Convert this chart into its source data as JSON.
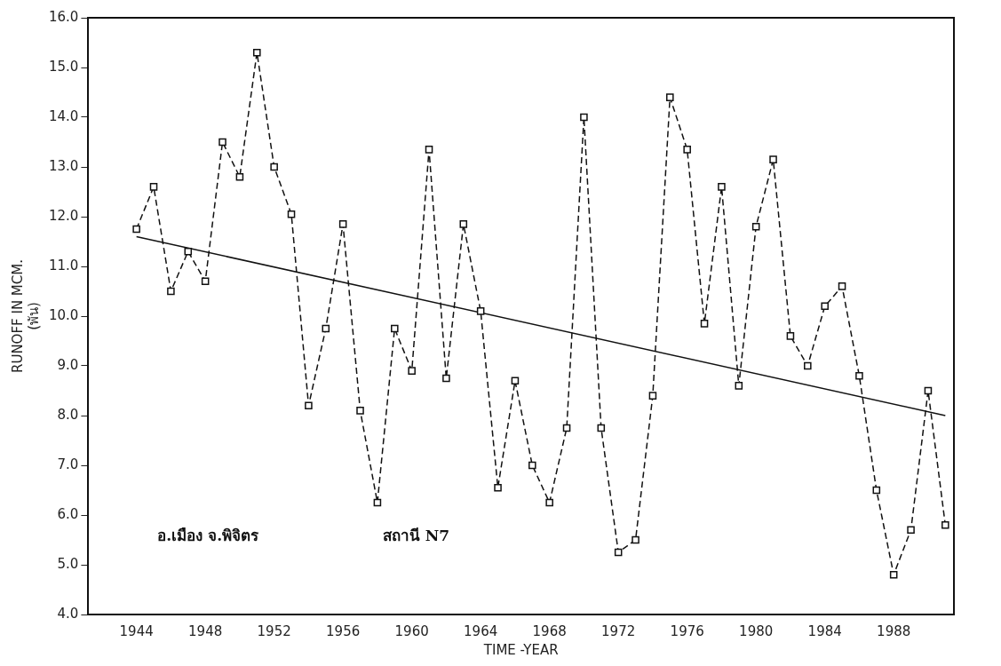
{
  "chart_data": {
    "type": "line",
    "xlabel": "TIME -YEAR",
    "ylabel": "RUNOFF IN MCM.\n(พัน)",
    "x": [
      1944,
      1945,
      1946,
      1947,
      1948,
      1949,
      1950,
      1951,
      1952,
      1953,
      1954,
      1955,
      1956,
      1957,
      1958,
      1959,
      1960,
      1961,
      1962,
      1963,
      1964,
      1965,
      1966,
      1967,
      1968,
      1969,
      1970,
      1971,
      1972,
      1973,
      1974,
      1975,
      1976,
      1977,
      1978,
      1979,
      1980,
      1981,
      1982,
      1983,
      1984,
      1985,
      1986,
      1987,
      1988,
      1989,
      1990,
      1991
    ],
    "series": [
      {
        "color": "#111111",
        "line_style": "dashed",
        "marker": "square",
        "values": [
          11.75,
          12.6,
          10.5,
          11.3,
          10.7,
          13.5,
          12.8,
          15.3,
          13.0,
          12.05,
          8.2,
          9.75,
          11.85,
          8.1,
          6.25,
          9.75,
          8.9,
          13.35,
          8.75,
          11.85,
          10.1,
          6.55,
          8.7,
          7.0,
          6.25,
          7.75,
          14.0,
          7.75,
          5.25,
          5.5,
          8.4,
          14.4,
          13.35,
          9.85,
          12.6,
          8.6,
          11.8,
          13.15,
          9.6,
          9.0,
          10.2,
          10.6,
          8.8,
          6.5,
          4.8,
          5.7,
          8.5,
          5.8
        ]
      },
      {
        "color": "#111111",
        "line_style": "solid",
        "marker": "none",
        "x": [
          1944,
          1991
        ],
        "values": [
          11.6,
          8.0
        ]
      }
    ],
    "xlim": [
      1941.2,
      1991.5
    ],
    "xticks": [
      1944,
      1948,
      1952,
      1956,
      1960,
      1964,
      1968,
      1972,
      1976,
      1980,
      1984,
      1988
    ],
    "ylim": [
      4,
      16
    ],
    "yticks": [
      {
        "value": 4,
        "label": "4.0"
      },
      {
        "value": 5,
        "label": "5.0"
      },
      {
        "value": 6,
        "label": "6.0"
      },
      {
        "value": 7,
        "label": "7.0"
      },
      {
        "value": 8,
        "label": "8.0"
      },
      {
        "value": 9,
        "label": "9.0"
      },
      {
        "value": 10,
        "label": "10.0"
      },
      {
        "value": 11,
        "label": "11.0"
      },
      {
        "value": 12,
        "label": "12.0"
      },
      {
        "value": 13,
        "label": "13.0"
      },
      {
        "value": 14,
        "label": "14.0"
      },
      {
        "value": 15,
        "label": "15.0"
      },
      {
        "value": 16,
        "label": "16.0"
      }
    ],
    "grid": false,
    "legend": false,
    "annotations": [
      "อ.เมือง จ.พิจิตร",
      "สถานี N7"
    ]
  }
}
